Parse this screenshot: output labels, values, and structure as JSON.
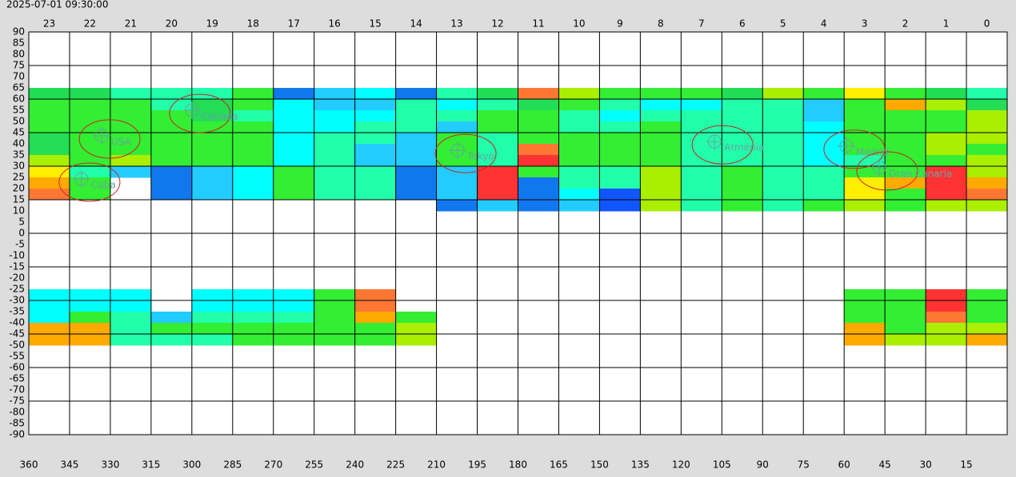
{
  "chart_data": {
    "type": "heatmap",
    "title": "2025-07-01 09:30:00",
    "ra_hours": [
      23,
      22,
      21,
      20,
      19,
      18,
      17,
      16,
      15,
      14,
      13,
      12,
      11,
      10,
      9,
      8,
      7,
      6,
      5,
      4,
      3,
      2,
      1,
      0
    ],
    "xlim": [
      360,
      0
    ],
    "xticks": [
      360,
      345,
      330,
      315,
      300,
      285,
      270,
      255,
      240,
      225,
      210,
      195,
      180,
      165,
      150,
      135,
      120,
      105,
      90,
      75,
      60,
      45,
      30,
      15
    ],
    "ylim": [
      -90,
      90
    ],
    "yticks": [
      90,
      85,
      80,
      75,
      70,
      65,
      60,
      55,
      50,
      45,
      40,
      35,
      30,
      25,
      20,
      15,
      10,
      5,
      0,
      -5,
      -10,
      -15,
      -20,
      -25,
      -30,
      -35,
      -40,
      -45,
      -50,
      -55,
      -60,
      -65,
      -70,
      -75,
      -80,
      -85,
      -90
    ],
    "grid": true,
    "bands": [
      {
        "dec_edges": [
          65,
          60,
          55,
          50,
          45,
          40,
          35,
          30,
          25,
          20,
          15,
          10
        ],
        "rows": [
          [
            "#22dd55",
            "#22dd55",
            "#22ffaa",
            "#22ffaa",
            "#22ffaa",
            "#33ee33",
            "#1177ee",
            "#22ccff",
            "#00ffff",
            "#1177ee",
            "#22ffaa",
            "#22dd55",
            "#ff7733",
            "#aaee00",
            "#33ee33",
            "#33ee33",
            "#33ee33",
            "#22dd55",
            "#aaee00",
            "#33ee33",
            "#ffee00",
            "#33ee33",
            "#22dd55",
            "#22ffaa"
          ],
          [
            "#33ee33",
            "#33ee33",
            "#33ee33",
            "#22ffaa",
            "#22dd55",
            "#33ee33",
            "#00ffff",
            "#22ccff",
            "#22ccff",
            "#22ffaa",
            "#00ffff",
            "#22ffaa",
            "#22dd55",
            "#33ee33",
            "#22ffaa",
            "#00ffff",
            "#00ffff",
            "#22ffaa",
            "#22ffaa",
            "#22ccff",
            "#33ee33",
            "#ffaa00",
            "#aaee00",
            "#22dd55"
          ],
          [
            "#33ee33",
            "#33ee33",
            "#33ee33",
            "#33ee33",
            "#22dd55",
            "#22ffaa",
            "#00ffff",
            "#00ffff",
            "#00ffff",
            "#22ffaa",
            "#22ffaa",
            "#33ee33",
            "#33ee33",
            "#22ffaa",
            "#00ffff",
            "#22ffaa",
            "#22ffaa",
            "#22ffaa",
            "#22ffaa",
            "#22ccff",
            "#33ee33",
            "#33ee33",
            "#33ee33",
            "#aaee00"
          ],
          [
            "#33ee33",
            "#33ee33",
            "#33ee33",
            "#33ee33",
            "#33ee33",
            "#33ee33",
            "#00ffff",
            "#00ffff",
            "#22ffaa",
            "#22ffaa",
            "#22ccff",
            "#33ee33",
            "#33ee33",
            "#22ffaa",
            "#22ffaa",
            "#33ee33",
            "#22ffaa",
            "#22ffaa",
            "#22ffaa",
            "#00ffff",
            "#33ee33",
            "#33ee33",
            "#33ee33",
            "#aaee00"
          ],
          [
            "#22dd55",
            "#33ee33",
            "#33ee33",
            "#33ee33",
            "#33ee33",
            "#33ee33",
            "#00ffff",
            "#22ffaa",
            "#22ffaa",
            "#22ccff",
            "#33ee33",
            "#22ffaa",
            "#33ee33",
            "#33ee33",
            "#33ee33",
            "#33ee33",
            "#22ffaa",
            "#22ffaa",
            "#22ffaa",
            "#00ffff",
            "#33ee33",
            "#33ee33",
            "#aaee00",
            "#aaee00"
          ],
          [
            "#22dd55",
            "#33ee33",
            "#33ee33",
            "#33ee33",
            "#33ee33",
            "#33ee33",
            "#00ffff",
            "#22ffaa",
            "#22ccff",
            "#22ccff",
            "#33ee33",
            "#22ffaa",
            "#ff7733",
            "#33ee33",
            "#33ee33",
            "#33ee33",
            "#22ffaa",
            "#22ffaa",
            "#22ffaa",
            "#00ffff",
            "#33ee33",
            "#33ee33",
            "#aaee00",
            "#33ee33"
          ],
          [
            "#aaee00",
            "#33ee33",
            "#aaee00",
            "#33ee33",
            "#33ee33",
            "#33ee33",
            "#00ffff",
            "#22ffaa",
            "#22ccff",
            "#22ccff",
            "#33ee33",
            "#22ffaa",
            "#ff3333",
            "#33ee33",
            "#33ee33",
            "#33ee33",
            "#22ffaa",
            "#22ffaa",
            "#22ffaa",
            "#00ffff",
            "#22ffaa",
            "#33ee33",
            "#33ee33",
            "#aaee00"
          ],
          [
            "#ffee00",
            "#22ffaa",
            "#22ccff",
            "#1177ee",
            "#22ccff",
            "#00ffff",
            "#33ee33",
            "#22ffaa",
            "#22ffaa",
            "#1177ee",
            "#22ccff",
            "#ff3333",
            "#33ee33",
            "#22ffaa",
            "#22ffaa",
            "#aaee00",
            "#22ffaa",
            "#33ee33",
            "#22ffaa",
            "#22ffaa",
            "#33ee33",
            "#33ee33",
            "#ff3333",
            "#aaee00"
          ],
          [
            "#ffaa00",
            "#33ee33",
            null,
            "#1177ee",
            "#22ccff",
            "#00ffff",
            "#33ee33",
            "#22ffaa",
            "#22ffaa",
            "#1177ee",
            "#22ccff",
            "#ff3333",
            "#1177ee",
            "#22ffaa",
            "#22ffaa",
            "#aaee00",
            "#22ffaa",
            "#33ee33",
            "#22ffaa",
            "#22ffaa",
            "#ffee00",
            "#ffaa00",
            "#ff3333",
            "#ffaa00"
          ],
          [
            "#ff7733",
            "#33ee33",
            null,
            "#1177ee",
            "#22ccff",
            "#00ffff",
            "#33ee33",
            "#22ffaa",
            "#22ffaa",
            "#1177ee",
            "#22ccff",
            "#ff3333",
            "#1177ee",
            "#00ffff",
            "#1155ff",
            "#aaee00",
            "#22ffaa",
            "#33ee33",
            "#22ffaa",
            "#22ffaa",
            "#ffee00",
            "#33ee33",
            "#ff3333",
            "#ff7733"
          ],
          [
            null,
            null,
            null,
            null,
            null,
            null,
            null,
            null,
            null,
            null,
            "#1177ee",
            "#22ccff",
            "#1177ee",
            "#22ccff",
            "#1155ff",
            "#aaee00",
            "#22ffaa",
            "#33ee33",
            "#22ffaa",
            "#33ee33",
            "#aaee00",
            "#33ee33",
            "#aaee00",
            "#aaee00"
          ]
        ]
      },
      {
        "dec_edges": [
          -25,
          -30,
          -35,
          -40,
          -45,
          -50
        ],
        "rows": [
          [
            "#00ffff",
            "#00ffff",
            "#00ffff",
            null,
            "#00ffff",
            "#00ffff",
            "#00ffff",
            "#33ee33",
            "#ff7733",
            null,
            null,
            null,
            null,
            null,
            null,
            null,
            null,
            null,
            null,
            null,
            "#33ee33",
            "#33ee33",
            "#ff3333",
            "#33ee33"
          ],
          [
            "#00ffff",
            "#00ffff",
            "#00ffff",
            null,
            "#00ffff",
            "#00ffff",
            "#00ffff",
            "#33ee33",
            "#ff7733",
            null,
            null,
            null,
            null,
            null,
            null,
            null,
            null,
            null,
            null,
            null,
            "#33ee33",
            "#33ee33",
            "#ff3333",
            "#33ee33"
          ],
          [
            "#00ffff",
            "#33ee33",
            "#22ffaa",
            "#22ccff",
            "#22ffaa",
            "#22ffaa",
            "#22ffaa",
            "#33ee33",
            "#ffaa00",
            "#33ee33",
            null,
            null,
            null,
            null,
            null,
            null,
            null,
            null,
            null,
            null,
            "#33ee33",
            "#33ee33",
            "#ff7733",
            "#33ee33"
          ],
          [
            "#ffaa00",
            "#ffaa00",
            "#22ffaa",
            "#33ee33",
            "#33ee33",
            "#33ee33",
            "#33ee33",
            "#33ee33",
            "#33ee33",
            "#aaee00",
            null,
            null,
            null,
            null,
            null,
            null,
            null,
            null,
            null,
            null,
            "#ffaa00",
            "#33ee33",
            "#aaee00",
            "#aaee00"
          ],
          [
            "#ffaa00",
            "#ffaa00",
            "#22ffaa",
            "#22ffaa",
            "#22ffaa",
            "#33ee33",
            "#33ee33",
            "#33ee33",
            "#33ee33",
            "#aaee00",
            null,
            null,
            null,
            null,
            null,
            null,
            null,
            null,
            null,
            null,
            "#ffaa00",
            "#aaee00",
            "#aaee00",
            "#ffaa00"
          ]
        ]
      }
    ],
    "markers": [
      {
        "label": "USA",
        "ra": 333.2,
        "dec": 43.6
      },
      {
        "label": "Canada",
        "ra": 300,
        "dec": 55
      },
      {
        "label": "Cuba",
        "ra": 340.6,
        "dec": 24.3
      },
      {
        "label": "Tokyo",
        "ra": 202.2,
        "dec": 37.1
      },
      {
        "label": "Armenia",
        "ra": 107.7,
        "dec": 41
      },
      {
        "label": "Madrid",
        "ra": 59.2,
        "dec": 39
      },
      {
        "label": "Gran Canaria",
        "ra": 47.1,
        "dec": 29.3
      }
    ]
  }
}
